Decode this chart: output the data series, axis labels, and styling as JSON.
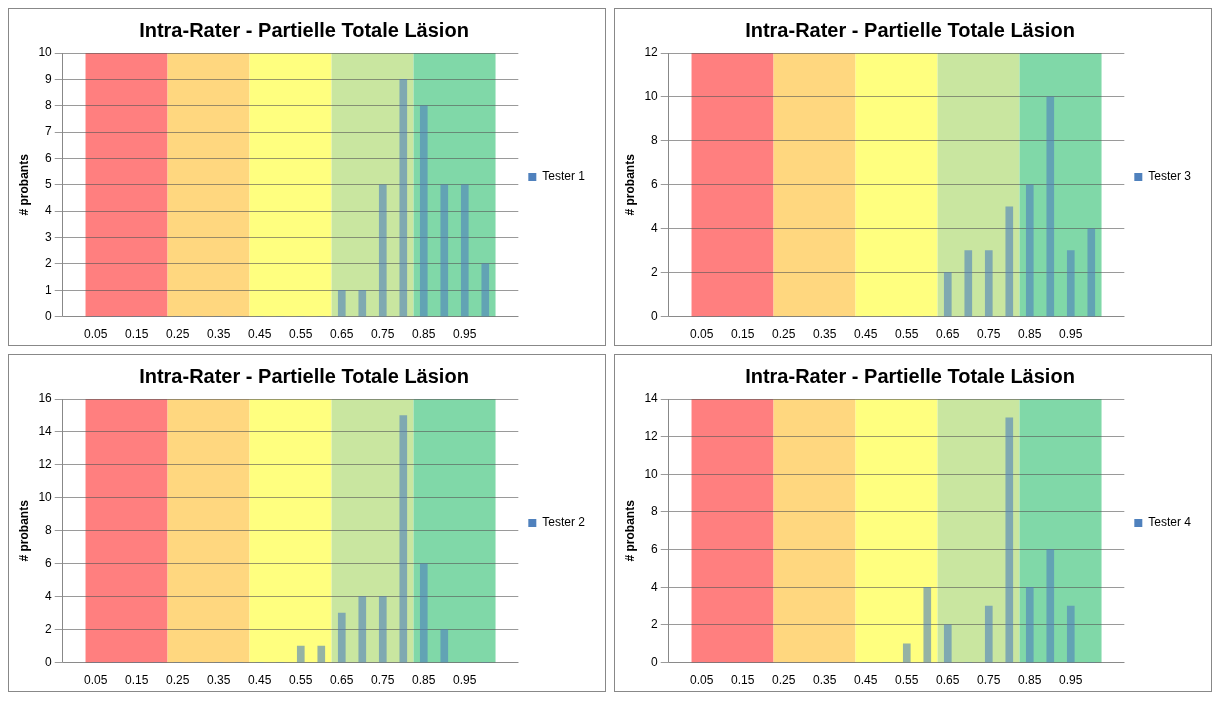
{
  "chart_data": [
    {
      "type": "bar",
      "title": "Intra-Rater - Partielle Totale Läsion",
      "ylabel": "# probants",
      "x": [
        0.05,
        0.1,
        0.15,
        0.2,
        0.25,
        0.3,
        0.35,
        0.4,
        0.45,
        0.5,
        0.55,
        0.6,
        0.65,
        0.7,
        0.75,
        0.8,
        0.85,
        0.9,
        0.95,
        1.0
      ],
      "series": [
        {
          "name": "Tester 1",
          "color": "#4f81bd",
          "values": [
            0,
            0,
            0,
            0,
            0,
            0,
            0,
            0,
            0,
            0,
            0,
            0,
            1,
            1,
            5,
            9,
            8,
            5,
            5,
            2
          ]
        }
      ],
      "xlim": [
        0.025,
        1.025
      ],
      "xticks": [
        0.05,
        0.15,
        0.25,
        0.35,
        0.45,
        0.55,
        0.65,
        0.75,
        0.85,
        0.95
      ],
      "ylim": [
        0,
        10
      ],
      "yticks": [
        0,
        1,
        2,
        3,
        4,
        5,
        6,
        7,
        8,
        9,
        10
      ],
      "grid": "y",
      "legend": "right",
      "bands": [
        {
          "axis": "x",
          "from": 0.025,
          "to": 0.225,
          "color": "#ff7f7f"
        },
        {
          "axis": "x",
          "from": 0.225,
          "to": 0.425,
          "color": "#ffd77f"
        },
        {
          "axis": "x",
          "from": 0.425,
          "to": 0.625,
          "color": "#ffff7f"
        },
        {
          "axis": "x",
          "from": 0.625,
          "to": 0.825,
          "color": "#c9e6a0"
        },
        {
          "axis": "x",
          "from": 0.825,
          "to": 1.025,
          "color": "#80d8a8"
        }
      ]
    },
    {
      "type": "bar",
      "title": "Intra-Rater - Partielle Totale Läsion",
      "ylabel": "# probants",
      "x": [
        0.05,
        0.1,
        0.15,
        0.2,
        0.25,
        0.3,
        0.35,
        0.4,
        0.45,
        0.5,
        0.55,
        0.6,
        0.65,
        0.7,
        0.75,
        0.8,
        0.85,
        0.9,
        0.95,
        1.0
      ],
      "series": [
        {
          "name": "Tester 3",
          "color": "#4f81bd",
          "values": [
            0,
            0,
            0,
            0,
            0,
            0,
            0,
            0,
            0,
            0,
            0,
            0,
            2,
            3,
            3,
            5,
            6,
            10,
            3,
            4
          ]
        }
      ],
      "xlim": [
        0.025,
        1.025
      ],
      "xticks": [
        0.05,
        0.15,
        0.25,
        0.35,
        0.45,
        0.55,
        0.65,
        0.75,
        0.85,
        0.95
      ],
      "ylim": [
        0,
        12
      ],
      "yticks": [
        0,
        2,
        4,
        6,
        8,
        10,
        12
      ],
      "grid": "y",
      "legend": "right",
      "bands": [
        {
          "axis": "x",
          "from": 0.025,
          "to": 0.225,
          "color": "#ff7f7f"
        },
        {
          "axis": "x",
          "from": 0.225,
          "to": 0.425,
          "color": "#ffd77f"
        },
        {
          "axis": "x",
          "from": 0.425,
          "to": 0.625,
          "color": "#ffff7f"
        },
        {
          "axis": "x",
          "from": 0.625,
          "to": 0.825,
          "color": "#c9e6a0"
        },
        {
          "axis": "x",
          "from": 0.825,
          "to": 1.025,
          "color": "#80d8a8"
        }
      ]
    },
    {
      "type": "bar",
      "title": "Intra-Rater - Partielle Totale Läsion",
      "ylabel": "# probants",
      "x": [
        0.05,
        0.1,
        0.15,
        0.2,
        0.25,
        0.3,
        0.35,
        0.4,
        0.45,
        0.5,
        0.55,
        0.6,
        0.65,
        0.7,
        0.75,
        0.8,
        0.85,
        0.9,
        0.95,
        1.0
      ],
      "series": [
        {
          "name": "Tester 2",
          "color": "#4f81bd",
          "values": [
            0,
            0,
            0,
            0,
            0,
            0,
            0,
            0,
            0,
            0,
            1,
            1,
            3,
            4,
            4,
            15,
            6,
            2,
            0,
            0
          ]
        }
      ],
      "xlim": [
        0.025,
        1.025
      ],
      "xticks": [
        0.05,
        0.15,
        0.25,
        0.35,
        0.45,
        0.55,
        0.65,
        0.75,
        0.85,
        0.95
      ],
      "ylim": [
        0,
        16
      ],
      "yticks": [
        0,
        2,
        4,
        6,
        8,
        10,
        12,
        14,
        16
      ],
      "grid": "y",
      "legend": "right",
      "bands": [
        {
          "axis": "x",
          "from": 0.025,
          "to": 0.225,
          "color": "#ff7f7f"
        },
        {
          "axis": "x",
          "from": 0.225,
          "to": 0.425,
          "color": "#ffd77f"
        },
        {
          "axis": "x",
          "from": 0.425,
          "to": 0.625,
          "color": "#ffff7f"
        },
        {
          "axis": "x",
          "from": 0.625,
          "to": 0.825,
          "color": "#c9e6a0"
        },
        {
          "axis": "x",
          "from": 0.825,
          "to": 1.025,
          "color": "#80d8a8"
        }
      ]
    },
    {
      "type": "bar",
      "title": "Intra-Rater - Partielle Totale Läsion",
      "ylabel": "# probants",
      "x": [
        0.05,
        0.1,
        0.15,
        0.2,
        0.25,
        0.3,
        0.35,
        0.4,
        0.45,
        0.5,
        0.55,
        0.6,
        0.65,
        0.7,
        0.75,
        0.8,
        0.85,
        0.9,
        0.95,
        1.0
      ],
      "series": [
        {
          "name": "Tester 4",
          "color": "#4f81bd",
          "values": [
            0,
            0,
            0,
            0,
            0,
            0,
            0,
            0,
            0,
            0,
            1,
            4,
            2,
            0,
            3,
            13,
            4,
            6,
            3,
            0
          ]
        }
      ],
      "xlim": [
        0.025,
        1.025
      ],
      "xticks": [
        0.05,
        0.15,
        0.25,
        0.35,
        0.45,
        0.55,
        0.65,
        0.75,
        0.85,
        0.95
      ],
      "ylim": [
        0,
        14
      ],
      "yticks": [
        0,
        2,
        4,
        6,
        8,
        10,
        12,
        14
      ],
      "grid": "y",
      "legend": "right",
      "bands": [
        {
          "axis": "x",
          "from": 0.025,
          "to": 0.225,
          "color": "#ff7f7f"
        },
        {
          "axis": "x",
          "from": 0.225,
          "to": 0.425,
          "color": "#ffd77f"
        },
        {
          "axis": "x",
          "from": 0.425,
          "to": 0.625,
          "color": "#ffff7f"
        },
        {
          "axis": "x",
          "from": 0.625,
          "to": 0.825,
          "color": "#c9e6a0"
        },
        {
          "axis": "x",
          "from": 0.825,
          "to": 1.025,
          "color": "#80d8a8"
        }
      ]
    }
  ]
}
